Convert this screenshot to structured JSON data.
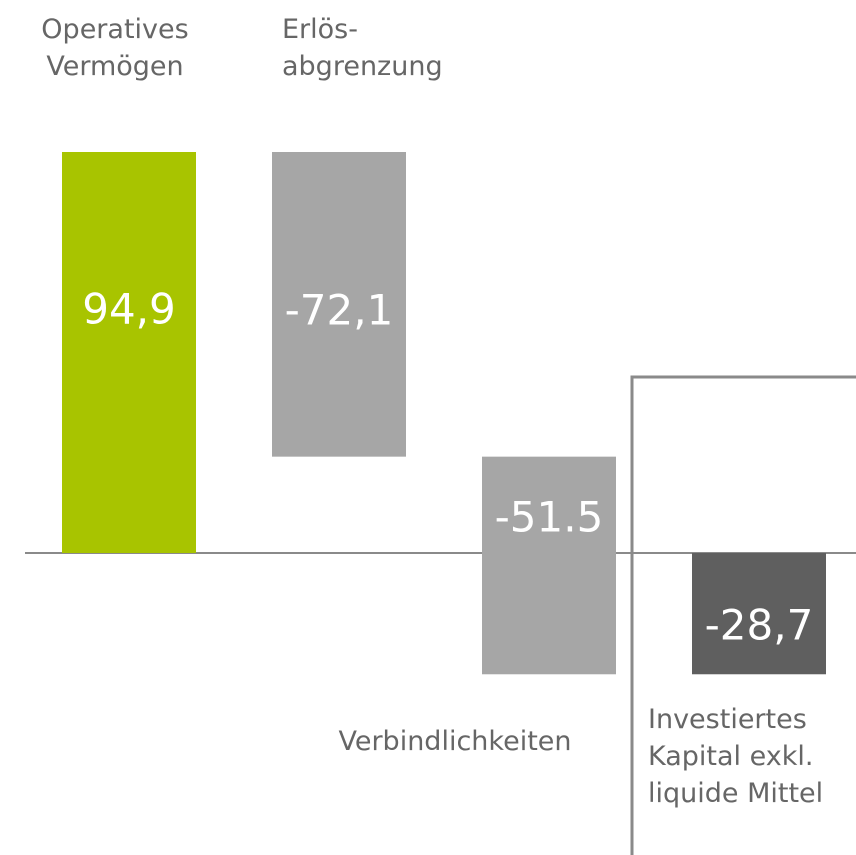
{
  "chart_data": {
    "type": "waterfall",
    "categories": [
      "Operatives\nVermögen",
      "Erlös-\nabgrenzung",
      "Verbindlichkeiten",
      "Investiertes\nKapital exkl.\nliquide Mittel"
    ],
    "values": [
      94.9,
      -72.1,
      -51.5,
      -28.7
    ],
    "value_labels": [
      "94,9",
      "-72,1",
      "-51.5",
      "-28,7"
    ],
    "colors": [
      "#a8c400",
      "#a6a6a6",
      "#a6a6a6",
      "#5f5f5f"
    ]
  }
}
